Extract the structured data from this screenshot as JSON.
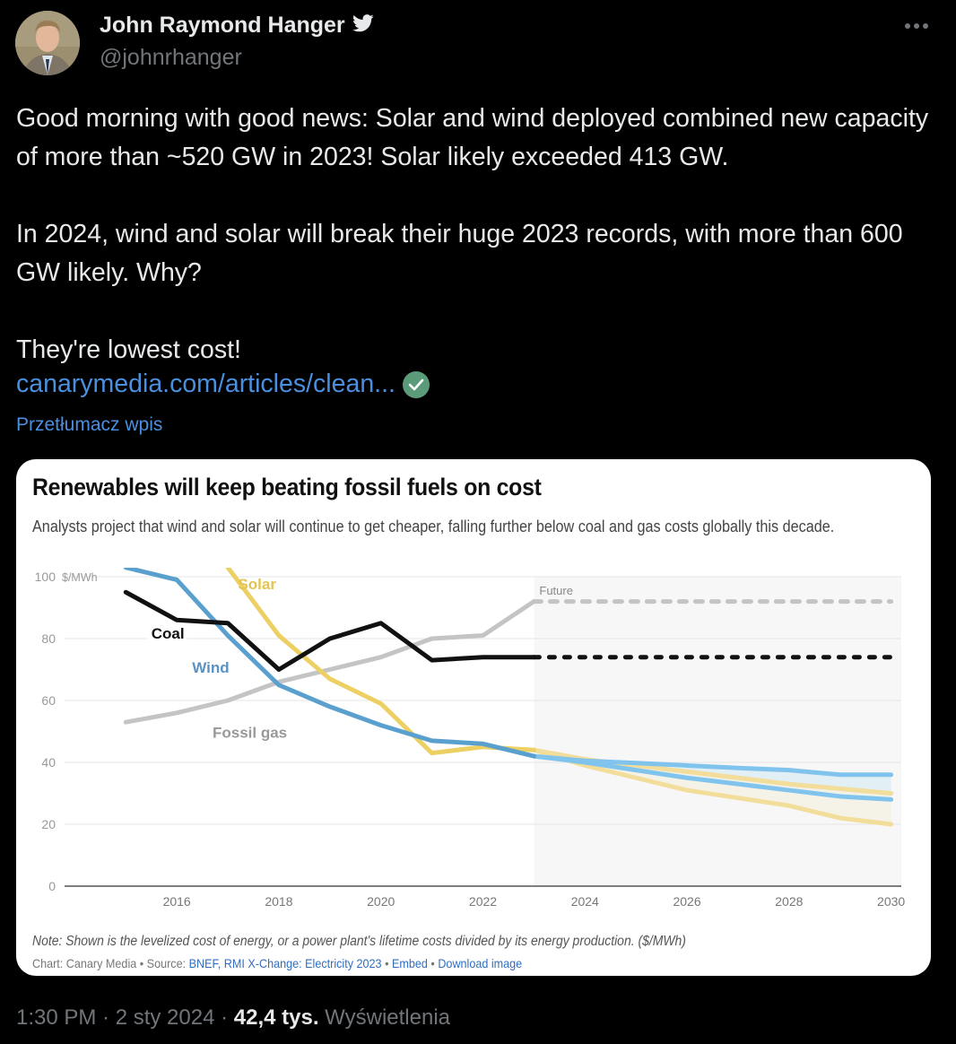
{
  "author": {
    "name": "John Raymond Hanger",
    "handle": "@johnrhanger",
    "badge_icon": "twitter-bird-icon"
  },
  "tweet": {
    "text": "Good morning with good news: Solar and wind deployed combined new capacity of more than ~520 GW in 2023! Solar likely exceeded 413 GW.\n\nIn 2024, wind and solar will break their huge 2023 records, with more than 600 GW likely. Why?\n\nThey're lowest cost!",
    "link_text": "canarymedia.com/articles/clean...",
    "translate_label": "Przetłumacz wpis"
  },
  "card": {
    "title": "Renewables will keep beating fossil fuels on cost",
    "subtitle": "Analysts project that wind and solar will continue to get cheaper, falling further below coal and gas costs globally this decade.",
    "note": "Note: Shown is the levelized cost of energy, or a power plant's lifetime costs divided by its energy production. ($/MWh)",
    "credits": {
      "prefix": "Chart: Canary Media • Source: ",
      "source_link": "BNEF, RMI X-Change: Electricity 2023",
      "sep1": " • ",
      "embed_link": "Embed",
      "sep2": " • ",
      "download_link": "Download image"
    }
  },
  "footer": {
    "time": "1:30 PM · 2 sty 2024 · ",
    "views_count": "42,4 tys.",
    "views_label": " Wyświetlenia"
  },
  "chart_data": {
    "type": "line",
    "title": "Renewables will keep beating fossil fuels on cost",
    "ylabel": "$/MWh",
    "xlabel": "",
    "ylim": [
      0,
      100
    ],
    "xlim": [
      2013.8,
      2030.2
    ],
    "yticks": [
      0,
      20,
      40,
      60,
      80,
      100
    ],
    "y_unit_label": "$/MWh",
    "xticks": [
      2016,
      2018,
      2020,
      2022,
      2024,
      2026,
      2028,
      2030
    ],
    "future_start": 2023,
    "future_label": "Future",
    "grid": true,
    "series": [
      {
        "name": "Coal",
        "color": "#111111",
        "label_color": "#111111",
        "x": [
          2015,
          2016,
          2017,
          2018,
          2019,
          2020,
          2021,
          2022,
          2023
        ],
        "values": [
          95,
          86,
          85,
          70,
          80,
          85,
          73,
          74,
          74
        ],
        "projection": {
          "style": "dotted",
          "x": [
            2023,
            2030
          ],
          "values": [
            74,
            74
          ]
        }
      },
      {
        "name": "Fossil gas",
        "color": "#c4c4c4",
        "label_color": "#999999",
        "x": [
          2015,
          2016,
          2017,
          2018,
          2019,
          2020,
          2021,
          2022,
          2023
        ],
        "values": [
          53,
          56,
          60,
          66,
          70,
          74,
          80,
          81,
          92
        ],
        "projection": {
          "style": "dashed",
          "x": [
            2023,
            2030
          ],
          "values": [
            92,
            92
          ]
        }
      },
      {
        "name": "Wind",
        "color": "#5aa0cf",
        "label_color": "#5a93c2",
        "x": [
          2015,
          2016,
          2017,
          2018,
          2019,
          2020,
          2021,
          2022,
          2023
        ],
        "values": [
          103,
          99,
          81,
          65,
          58,
          52,
          47,
          46,
          42
        ],
        "projection": {
          "style": "band",
          "color": "#80c4ee",
          "fill": "#dcecf2",
          "x": [
            2023,
            2024,
            2025,
            2026,
            2027,
            2028,
            2029,
            2030
          ],
          "upper": [
            42,
            40.5,
            39.8,
            39,
            38.2,
            37.5,
            36,
            36
          ],
          "lower": [
            42,
            40,
            37.5,
            35,
            33,
            31,
            29,
            28
          ]
        }
      },
      {
        "name": "Solar",
        "color": "#ecd064",
        "label_color": "#e3c451",
        "x": [
          2017,
          2018,
          2019,
          2020,
          2021,
          2022,
          2023
        ],
        "values": [
          103,
          81,
          67,
          59,
          43,
          45,
          44
        ],
        "projection": {
          "style": "band",
          "color": "#f3dd9a",
          "fill": "#f4f1e3",
          "x": [
            2023,
            2024,
            2025,
            2026,
            2027,
            2028,
            2029,
            2030
          ],
          "upper": [
            44,
            41,
            39,
            37,
            35,
            33,
            31.5,
            30
          ],
          "lower": [
            44,
            39,
            35,
            31,
            28.5,
            26,
            22,
            20
          ]
        }
      }
    ],
    "labels": [
      {
        "text": "Solar",
        "series": "Solar",
        "x": 2017.2,
        "y": 96
      },
      {
        "text": "Coal",
        "series": "Coal",
        "x": 2015.5,
        "y": 80
      },
      {
        "text": "Wind",
        "series": "Wind",
        "x": 2016.3,
        "y": 69
      },
      {
        "text": "Fossil gas",
        "series": "Fossil gas",
        "x": 2016.7,
        "y": 48
      }
    ]
  }
}
